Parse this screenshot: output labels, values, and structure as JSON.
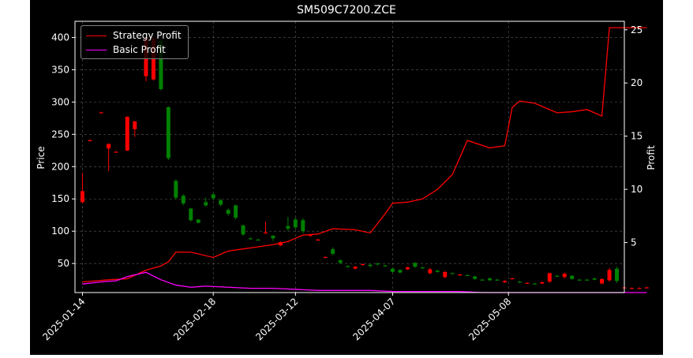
{
  "chart_data": {
    "type": "candlestick+line",
    "title": "SM509C7200.ZCE",
    "ylabel_left": "Price",
    "ylabel_right": "Profit",
    "ylim_left": [
      5,
      425
    ],
    "ylim_right": [
      0.3,
      25.8
    ],
    "yticks_left": [
      50,
      100,
      150,
      200,
      250,
      300,
      350,
      400
    ],
    "yticks_right": [
      5,
      10,
      15,
      20,
      25
    ],
    "xlim": [
      "2025-01-12",
      "2025-06-08"
    ],
    "xtick_labels": [
      "2025-01-14",
      "2025-02-18",
      "2025-03-12",
      "2025-04-07",
      "2025-05-08"
    ],
    "grid": true,
    "legend_position": "top-left",
    "colors": {
      "background": "#000000",
      "up": "#008000",
      "down": "#ff0000",
      "strategy": "#ff0000",
      "basic": "#ff00ff",
      "text": "#ffffff"
    },
    "candles": [
      {
        "date": "2025-01-14",
        "open": 145,
        "high": 190,
        "low": 143,
        "close": 162,
        "color": "down"
      },
      {
        "date": "2025-01-16",
        "open": 240,
        "high": 242,
        "low": 239,
        "close": 241,
        "color": "down"
      },
      {
        "date": "2025-01-19",
        "open": 284,
        "high": 285,
        "low": 283,
        "close": 284,
        "color": "down"
      },
      {
        "date": "2025-01-21",
        "open": 235,
        "high": 236,
        "low": 193,
        "close": 228,
        "color": "down"
      },
      {
        "date": "2025-01-23",
        "open": 223,
        "high": 224,
        "low": 222,
        "close": 223,
        "color": "down"
      },
      {
        "date": "2025-01-26",
        "open": 225,
        "high": 278,
        "low": 224,
        "close": 277,
        "color": "down"
      },
      {
        "date": "2025-01-28",
        "open": 258,
        "high": 271,
        "low": 246,
        "close": 270,
        "color": "down"
      },
      {
        "date": "2025-01-31",
        "open": 340,
        "high": 400,
        "low": 332,
        "close": 400,
        "color": "down"
      },
      {
        "date": "2025-02-02",
        "open": 335,
        "high": 400,
        "low": 333,
        "close": 398,
        "color": "down"
      },
      {
        "date": "2025-02-04",
        "open": 395,
        "high": 400,
        "low": 318,
        "close": 320,
        "color": "up"
      },
      {
        "date": "2025-02-06",
        "open": 292,
        "high": 293,
        "low": 210,
        "close": 213,
        "color": "up"
      },
      {
        "date": "2025-02-08",
        "open": 178,
        "high": 180,
        "low": 149,
        "close": 152,
        "color": "up"
      },
      {
        "date": "2025-02-10",
        "open": 155,
        "high": 157,
        "low": 140,
        "close": 143,
        "color": "up"
      },
      {
        "date": "2025-02-12",
        "open": 135,
        "high": 136,
        "low": 115,
        "close": 117,
        "color": "up"
      },
      {
        "date": "2025-02-14",
        "open": 118,
        "high": 119,
        "low": 112,
        "close": 113,
        "color": "up"
      },
      {
        "date": "2025-02-16",
        "open": 145,
        "high": 152,
        "low": 138,
        "close": 140,
        "color": "up"
      },
      {
        "date": "2025-02-18",
        "open": 157,
        "high": 159,
        "low": 148,
        "close": 151,
        "color": "up"
      },
      {
        "date": "2025-02-20",
        "open": 148,
        "high": 150,
        "low": 139,
        "close": 141,
        "color": "up"
      },
      {
        "date": "2025-02-22",
        "open": 133,
        "high": 135,
        "low": 124,
        "close": 127,
        "color": "up"
      },
      {
        "date": "2025-02-24",
        "open": 140,
        "high": 141,
        "low": 118,
        "close": 121,
        "color": "up"
      },
      {
        "date": "2025-02-26",
        "open": 109,
        "high": 110,
        "low": 93,
        "close": 95,
        "color": "up"
      },
      {
        "date": "2025-02-28",
        "open": 89,
        "high": 90,
        "low": 87,
        "close": 88,
        "color": "up"
      },
      {
        "date": "2025-03-02",
        "open": 87,
        "high": 88,
        "low": 86,
        "close": 87,
        "color": "up"
      },
      {
        "date": "2025-03-04",
        "open": 98,
        "high": 115,
        "low": 96,
        "close": 97,
        "color": "down"
      },
      {
        "date": "2025-03-06",
        "open": 93,
        "high": 94,
        "low": 85,
        "close": 89,
        "color": "up"
      },
      {
        "date": "2025-03-08",
        "open": 83,
        "high": 84,
        "low": 77,
        "close": 78,
        "color": "down"
      },
      {
        "date": "2025-03-10",
        "open": 108,
        "high": 122,
        "low": 100,
        "close": 104,
        "color": "up"
      },
      {
        "date": "2025-03-12",
        "open": 118,
        "high": 121,
        "low": 103,
        "close": 106,
        "color": "up"
      },
      {
        "date": "2025-03-14",
        "open": 117,
        "high": 120,
        "low": 97,
        "close": 100,
        "color": "up"
      },
      {
        "date": "2025-03-16",
        "open": 94,
        "high": 95,
        "low": 92,
        "close": 93,
        "color": "down"
      },
      {
        "date": "2025-03-18",
        "open": 87,
        "high": 88,
        "low": 86,
        "close": 87,
        "color": "down"
      },
      {
        "date": "2025-03-20",
        "open": 60,
        "high": 61,
        "low": 59,
        "close": 60,
        "color": "down"
      },
      {
        "date": "2025-03-22",
        "open": 72,
        "high": 75,
        "low": 63,
        "close": 65,
        "color": "up"
      },
      {
        "date": "2025-03-24",
        "open": 55,
        "high": 56,
        "low": 49,
        "close": 51,
        "color": "up"
      },
      {
        "date": "2025-03-26",
        "open": 46,
        "high": 47,
        "low": 44,
        "close": 45,
        "color": "up"
      },
      {
        "date": "2025-03-28",
        "open": 45,
        "high": 46,
        "low": 41,
        "close": 42,
        "color": "down"
      },
      {
        "date": "2025-03-30",
        "open": 49,
        "high": 50,
        "low": 47,
        "close": 48,
        "color": "down"
      },
      {
        "date": "2025-04-01",
        "open": 48,
        "high": 49,
        "low": 44,
        "close": 46,
        "color": "up"
      },
      {
        "date": "2025-04-03",
        "open": 50,
        "high": 51,
        "low": 47,
        "close": 49,
        "color": "up"
      },
      {
        "date": "2025-04-05",
        "open": 47,
        "high": 48,
        "low": 45,
        "close": 46,
        "color": "up"
      },
      {
        "date": "2025-04-07",
        "open": 42,
        "high": 43,
        "low": 36,
        "close": 37,
        "color": "up"
      },
      {
        "date": "2025-04-09",
        "open": 40,
        "high": 41,
        "low": 35,
        "close": 36,
        "color": "up"
      },
      {
        "date": "2025-04-11",
        "open": 44,
        "high": 45,
        "low": 40,
        "close": 41,
        "color": "down"
      },
      {
        "date": "2025-04-13",
        "open": 51,
        "high": 52,
        "low": 43,
        "close": 45,
        "color": "up"
      },
      {
        "date": "2025-04-15",
        "open": 44,
        "high": 45,
        "low": 42,
        "close": 43,
        "color": "up"
      },
      {
        "date": "2025-04-17",
        "open": 41,
        "high": 43,
        "low": 33,
        "close": 35,
        "color": "down"
      },
      {
        "date": "2025-04-19",
        "open": 39,
        "high": 40,
        "low": 36,
        "close": 37,
        "color": "up"
      },
      {
        "date": "2025-04-21",
        "open": 37,
        "high": 38,
        "low": 27,
        "close": 29,
        "color": "down"
      },
      {
        "date": "2025-04-23",
        "open": 35,
        "high": 36,
        "low": 34,
        "close": 35,
        "color": "up"
      },
      {
        "date": "2025-04-25",
        "open": 33,
        "high": 34,
        "low": 31,
        "close": 32,
        "color": "down"
      },
      {
        "date": "2025-04-27",
        "open": 32,
        "high": 33,
        "low": 31,
        "close": 32,
        "color": "up"
      },
      {
        "date": "2025-04-29",
        "open": 30,
        "high": 31,
        "low": 25,
        "close": 26,
        "color": "up"
      },
      {
        "date": "2025-05-01",
        "open": 25,
        "high": 26,
        "low": 24,
        "close": 25,
        "color": "up"
      },
      {
        "date": "2025-05-03",
        "open": 27,
        "high": 28,
        "low": 23,
        "close": 24,
        "color": "up"
      },
      {
        "date": "2025-05-05",
        "open": 25,
        "high": 26,
        "low": 24,
        "close": 25,
        "color": "up"
      },
      {
        "date": "2025-05-07",
        "open": 23,
        "high": 24,
        "low": 20,
        "close": 21,
        "color": "down"
      },
      {
        "date": "2025-05-09",
        "open": 27,
        "high": 28,
        "low": 26,
        "close": 27,
        "color": "down"
      },
      {
        "date": "2025-05-11",
        "open": 22,
        "high": 23,
        "low": 20,
        "close": 21,
        "color": "up"
      },
      {
        "date": "2025-05-13",
        "open": 20,
        "high": 21,
        "low": 19,
        "close": 20,
        "color": "down"
      },
      {
        "date": "2025-05-15",
        "open": 19,
        "high": 20,
        "low": 18,
        "close": 19,
        "color": "up"
      },
      {
        "date": "2025-05-17",
        "open": 21,
        "high": 22,
        "low": 18,
        "close": 19,
        "color": "down"
      },
      {
        "date": "2025-05-19",
        "open": 35,
        "high": 36,
        "low": 20,
        "close": 22,
        "color": "down"
      },
      {
        "date": "2025-05-21",
        "open": 30,
        "high": 32,
        "low": 29,
        "close": 31,
        "color": "up"
      },
      {
        "date": "2025-05-23",
        "open": 34,
        "high": 36,
        "low": 27,
        "close": 29,
        "color": "down"
      },
      {
        "date": "2025-05-25",
        "open": 31,
        "high": 32,
        "low": 25,
        "close": 26,
        "color": "up"
      },
      {
        "date": "2025-05-27",
        "open": 25,
        "high": 26,
        "low": 24,
        "close": 25,
        "color": "up"
      },
      {
        "date": "2025-05-29",
        "open": 25,
        "high": 26,
        "low": 24,
        "close": 25,
        "color": "up"
      },
      {
        "date": "2025-05-31",
        "open": 27,
        "high": 28,
        "low": 24,
        "close": 25,
        "color": "up"
      },
      {
        "date": "2025-06-02",
        "open": 26,
        "high": 27,
        "low": 18,
        "close": 19,
        "color": "down"
      },
      {
        "date": "2025-06-04",
        "open": 40,
        "high": 43,
        "low": 22,
        "close": 24,
        "color": "down"
      },
      {
        "date": "2025-06-06",
        "open": 42,
        "high": 45,
        "low": 20,
        "close": 23,
        "color": "up"
      },
      {
        "date": "2025-06-08",
        "open": 13,
        "high": 14,
        "low": 12,
        "close": 13,
        "color": "down"
      },
      {
        "date": "2025-06-10",
        "open": 12,
        "high": 13,
        "low": 11,
        "close": 12,
        "color": "down"
      },
      {
        "date": "2025-06-12",
        "open": 12,
        "high": 13,
        "low": 11,
        "close": 12,
        "color": "down"
      },
      {
        "date": "2025-06-14",
        "open": 13,
        "high": 14,
        "low": 12,
        "close": 13,
        "color": "down"
      }
    ],
    "series": [
      {
        "name": "Strategy Profit",
        "color": "#ff0000",
        "x": [
          "2025-01-14",
          "2025-01-21",
          "2025-01-26",
          "2025-01-31",
          "2025-02-04",
          "2025-02-06",
          "2025-02-08",
          "2025-02-12",
          "2025-02-18",
          "2025-02-22",
          "2025-02-26",
          "2025-03-02",
          "2025-03-06",
          "2025-03-10",
          "2025-03-14",
          "2025-03-18",
          "2025-03-22",
          "2025-03-28",
          "2025-04-01",
          "2025-04-05",
          "2025-04-07",
          "2025-04-11",
          "2025-04-15",
          "2025-04-19",
          "2025-04-23",
          "2025-04-27",
          "2025-05-03",
          "2025-05-07",
          "2025-05-09",
          "2025-05-11",
          "2025-05-15",
          "2025-05-19",
          "2025-05-21",
          "2025-05-25",
          "2025-05-29",
          "2025-06-02",
          "2025-06-04",
          "2025-06-06",
          "2025-06-14"
        ],
        "values": [
          1.3,
          1.5,
          1.6,
          2.4,
          2.8,
          3.2,
          4.1,
          4.1,
          3.6,
          4.2,
          4.4,
          4.6,
          4.8,
          5.1,
          5.7,
          5.8,
          6.3,
          6.2,
          5.9,
          7.7,
          8.7,
          8.8,
          9.1,
          10.0,
          11.4,
          14.6,
          13.9,
          14.1,
          17.7,
          18.3,
          18.1,
          17.5,
          17.2,
          17.3,
          17.5,
          16.9,
          25.2,
          25.2,
          25.2
        ]
      },
      {
        "name": "Basic Profit",
        "color": "#ff00ff",
        "x": [
          "2025-01-14",
          "2025-01-19",
          "2025-01-23",
          "2025-01-26",
          "2025-01-31",
          "2025-02-04",
          "2025-02-08",
          "2025-02-12",
          "2025-02-16",
          "2025-02-22",
          "2025-02-28",
          "2025-03-06",
          "2025-03-12",
          "2025-03-18",
          "2025-03-24",
          "2025-04-01",
          "2025-04-07",
          "2025-04-13",
          "2025-04-19",
          "2025-04-25",
          "2025-05-01",
          "2025-05-09",
          "2025-05-17",
          "2025-05-25",
          "2025-06-02",
          "2025-06-08",
          "2025-06-14"
        ],
        "values": [
          1.1,
          1.3,
          1.4,
          1.8,
          2.2,
          1.5,
          1.0,
          0.8,
          0.9,
          0.8,
          0.7,
          0.7,
          0.6,
          0.5,
          0.5,
          0.5,
          0.4,
          0.4,
          0.4,
          0.4,
          0.3,
          0.3,
          0.3,
          0.3,
          0.3,
          0.3,
          0.3
        ]
      }
    ]
  }
}
